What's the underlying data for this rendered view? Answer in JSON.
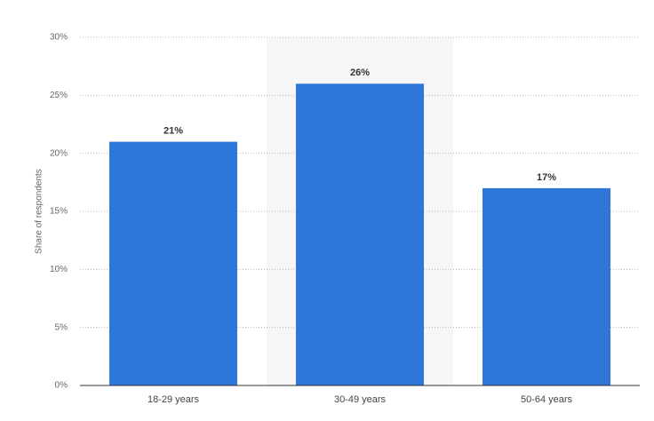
{
  "chart_data": {
    "type": "bar",
    "y_label": "Share of respondents",
    "categories": [
      "18-29 years",
      "30-49 years",
      "50-64 years"
    ],
    "values": [
      21,
      26,
      17
    ],
    "value_labels": [
      "21%",
      "26%",
      "17%"
    ],
    "color": "#2f76d9",
    "ylim": [
      0,
      30
    ],
    "yticks": [
      {
        "value": 0,
        "label": "0%"
      },
      {
        "value": 5,
        "label": "5%"
      },
      {
        "value": 10,
        "label": "10%"
      },
      {
        "value": 15,
        "label": "15%"
      },
      {
        "value": 20,
        "label": "20%"
      },
      {
        "value": 25,
        "label": "25%"
      },
      {
        "value": 30,
        "label": "30%"
      }
    ],
    "grid": true
  }
}
